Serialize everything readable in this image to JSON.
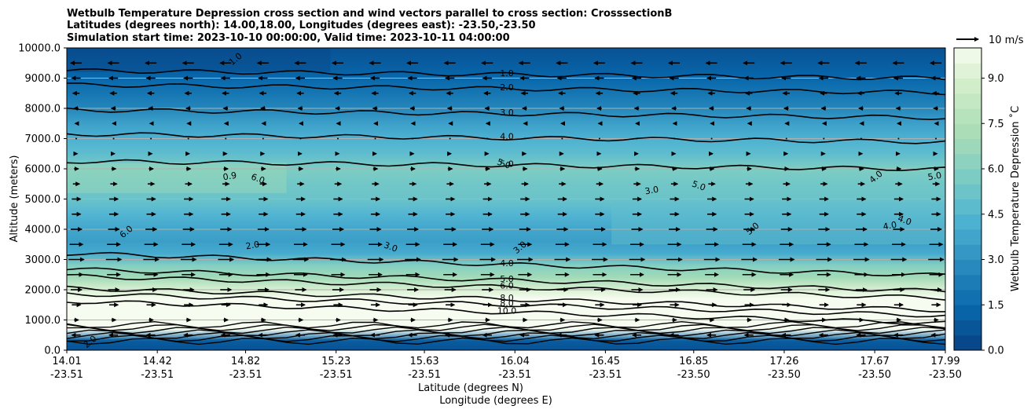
{
  "chart_data": {
    "type": "heatmap",
    "title_lines": [
      "Wetbulb Temperature Depression cross section and wind vectors parallel to cross section: CrosssectionB",
      "Latitudes (degrees north): 14.00,18.00, Longitudes (degrees east): -23.50,-23.50",
      "Simulation start time: 2023-10-10 00:00:00, Valid time: 2023-10-11 04:00:00"
    ],
    "xlabel_lines": [
      "Latitude (degrees N)",
      "Longitude (degrees E)"
    ],
    "ylabel": "Altitude (meters)",
    "x_ticks": [
      {
        "lat": "14.01",
        "lon": "-23.51"
      },
      {
        "lat": "14.42",
        "lon": "-23.51"
      },
      {
        "lat": "14.82",
        "lon": "-23.51"
      },
      {
        "lat": "15.23",
        "lon": "-23.51"
      },
      {
        "lat": "15.63",
        "lon": "-23.51"
      },
      {
        "lat": "16.04",
        "lon": "-23.51"
      },
      {
        "lat": "16.45",
        "lon": "-23.51"
      },
      {
        "lat": "16.85",
        "lon": "-23.50"
      },
      {
        "lat": "17.26",
        "lon": "-23.50"
      },
      {
        "lat": "17.67",
        "lon": "-23.50"
      },
      {
        "lat": "17.99",
        "lon": "-23.50"
      }
    ],
    "x_range": [
      14.01,
      17.99
    ],
    "y_ticks": [
      "0.0",
      "1000.0",
      "2000.0",
      "3000.0",
      "4000.0",
      "5000.0",
      "6000.0",
      "7000.0",
      "8000.0",
      "9000.0",
      "10000.0"
    ],
    "ylim": [
      0,
      10000
    ],
    "grid": "horizontal",
    "colorbar": {
      "label": "Wetbulb Temperature Depression ˚C",
      "ticks": [
        "0.0",
        "1.5",
        "3.0",
        "4.5",
        "6.0",
        "7.5",
        "9.0"
      ],
      "range": [
        0,
        10
      ],
      "levels": 20,
      "colormap": "GnBu_r",
      "colors": [
        "#084081",
        "#0868ac",
        "#2b8cbe",
        "#4eb3d3",
        "#7bccc4",
        "#a8ddb5",
        "#ccebc5",
        "#f7fcf0"
      ]
    },
    "quiver_key": {
      "label": "10 m/s",
      "value": 10
    },
    "contours": {
      "values_labeled": [
        "1.0",
        "2.0",
        "3.0",
        "4.0",
        "5.0",
        "6.0",
        "8.0",
        "10.0"
      ],
      "rows": [
        {
          "label": "1.0",
          "altitude": 9250
        },
        {
          "label": "2.0",
          "altitude": 8780
        },
        {
          "label": "3.0",
          "altitude": 7950
        },
        {
          "label": "4.0",
          "altitude": 7150
        },
        {
          "label": "5.0",
          "altitude": 6250
        },
        {
          "label": "4.0",
          "altitude": 3200
        },
        {
          "label": "5.0",
          "altitude": 2680
        },
        {
          "label": "6.0",
          "altitude": 2450
        },
        {
          "label": "8.0",
          "altitude": 2050
        },
        {
          "label": "8.0",
          "altitude": 1870
        },
        {
          "label": "10.0",
          "altitude": 1620
        }
      ],
      "inline_labels": [
        "1.0",
        "0.9",
        "6.0",
        "6.0",
        "2.0",
        "3.0",
        "3.0",
        "3.0",
        "5.0",
        "5.0",
        "4.0",
        "4.0",
        "4.0",
        "5.0",
        "5.0",
        "2.0"
      ]
    },
    "wind": {
      "description_levels_m": [
        9500,
        9000,
        8500,
        8000,
        7500,
        7000,
        6500,
        6000,
        5500,
        5000,
        4500,
        4000,
        3500,
        3000,
        2500,
        2000,
        1500,
        1000,
        500
      ],
      "u_ms": [
        -5,
        -4,
        -3,
        -2,
        -1,
        0,
        1,
        2,
        3,
        4,
        4,
        5,
        6,
        7,
        6,
        5,
        4,
        2,
        -4
      ]
    },
    "field_profile": {
      "altitude_m": [
        0,
        300,
        700,
        1000,
        1300,
        1700,
        2000,
        2400,
        2800,
        3200,
        3600,
        4000,
        4500,
        5000,
        5500,
        6000,
        6500,
        7000,
        7500,
        8000,
        8500,
        9000,
        9500,
        10000
      ],
      "depression_c": [
        0.5,
        1.2,
        10.0,
        10.0,
        10.0,
        10.0,
        9.0,
        7.0,
        6.0,
        4.0,
        3.5,
        3.8,
        4.4,
        5.2,
        5.4,
        5.8,
        4.8,
        4.2,
        3.6,
        2.6,
        2.0,
        1.4,
        1.0,
        0.6
      ]
    }
  }
}
